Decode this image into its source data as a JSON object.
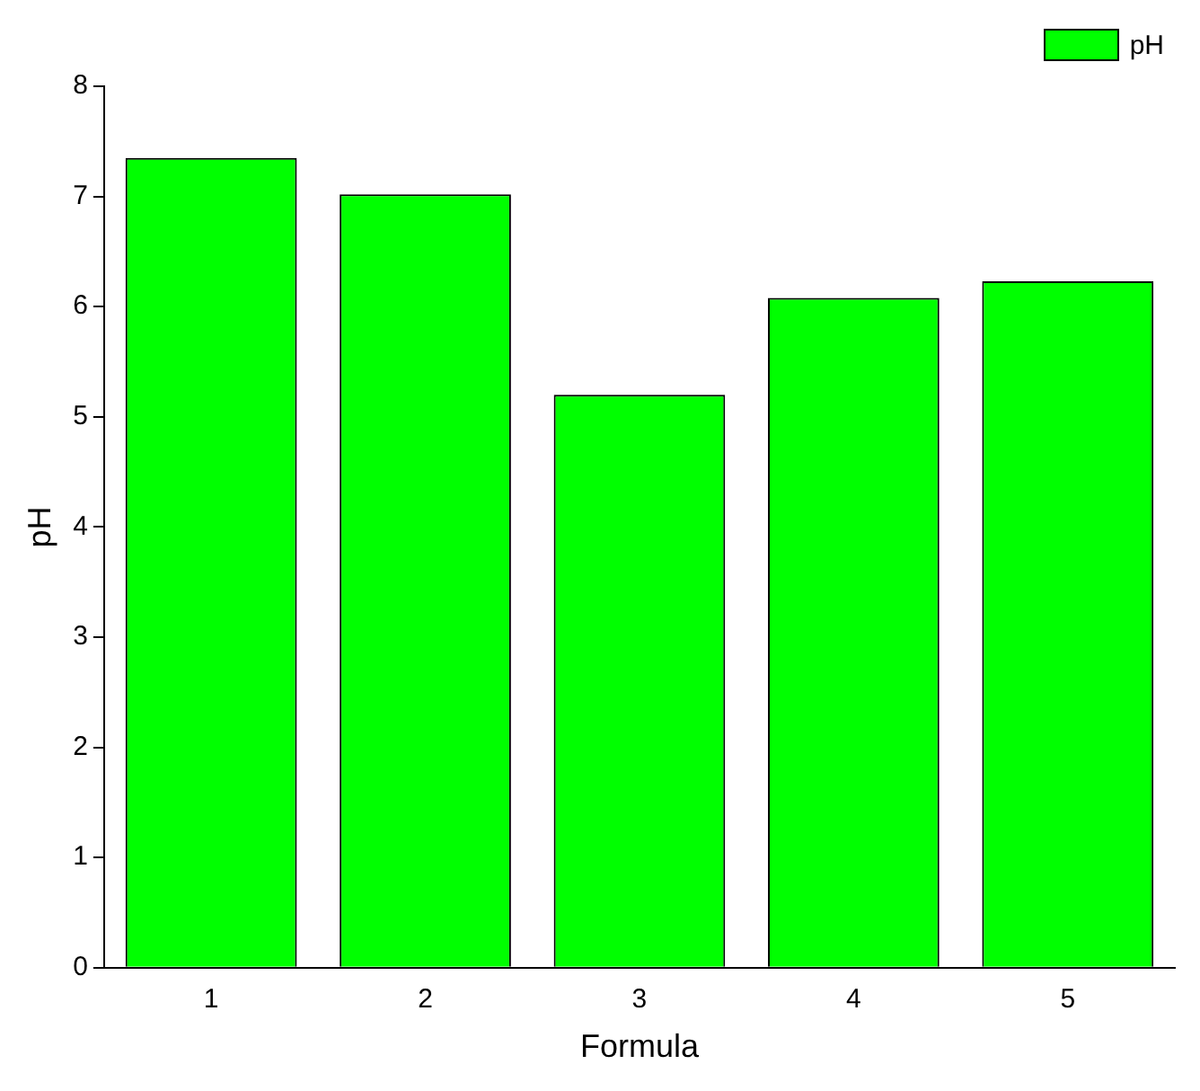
{
  "chart_data": {
    "type": "bar",
    "xlabel": "Formula",
    "ylabel": "pH",
    "categories": [
      "1",
      "2",
      "3",
      "4",
      "5"
    ],
    "series": [
      {
        "name": "pH",
        "color": "#00ff00",
        "values": [
          7.35,
          7.02,
          5.2,
          6.08,
          6.23
        ]
      }
    ],
    "ylim": [
      0,
      8
    ],
    "yticks": [
      0,
      1,
      2,
      3,
      4,
      5,
      6,
      7,
      8
    ],
    "grid": false,
    "legend": "top right"
  }
}
